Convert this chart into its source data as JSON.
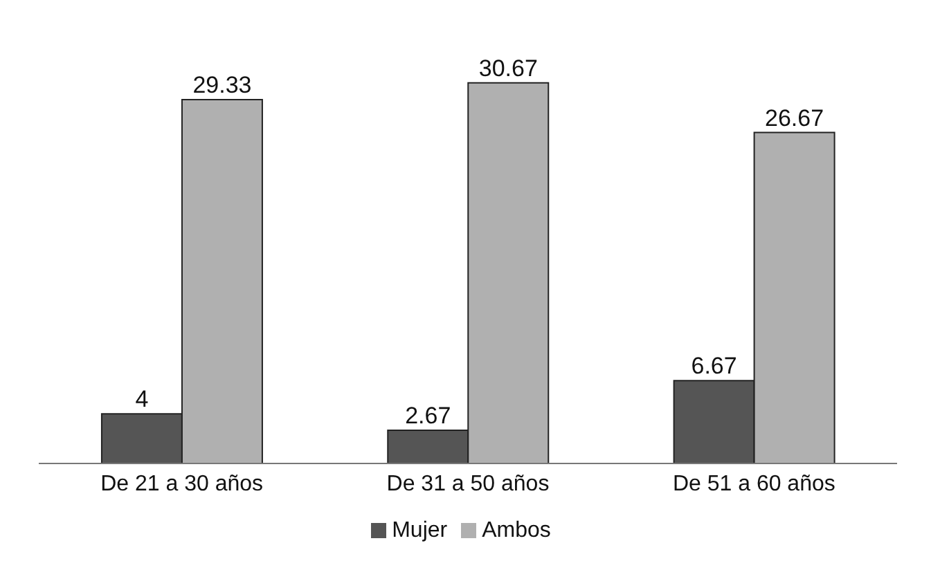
{
  "chart_data": {
    "type": "bar",
    "categories": [
      "De 21 a 30 años",
      "De 31 a 50 años",
      "De 51 a 60 años"
    ],
    "series": [
      {
        "name": "Mujer",
        "color": "#555555",
        "values": [
          4,
          2.67,
          6.67
        ]
      },
      {
        "name": "Ambos",
        "color": "#b0b0b0",
        "values": [
          29.33,
          30.67,
          26.67
        ]
      }
    ],
    "data_labels": true,
    "legend": "bottom",
    "grid": false
  }
}
